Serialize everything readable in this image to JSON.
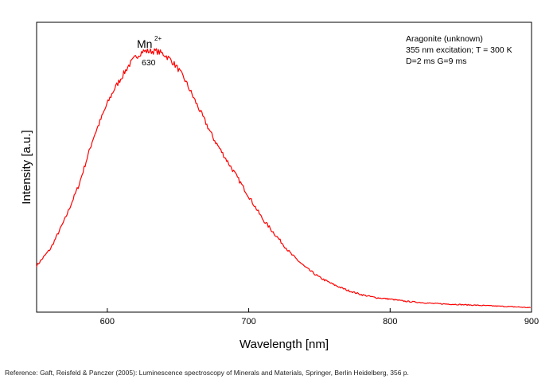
{
  "colors": {
    "series": "#ff0000",
    "axis": "#000000",
    "background": "#ffffff"
  },
  "chart_data": {
    "type": "line",
    "title": "",
    "xlabel": "Wavelength [nm]",
    "ylabel": "Intensity [a.u.]",
    "xlim": [
      550,
      900
    ],
    "ylim": [
      0,
      1
    ],
    "xticks": [
      600,
      700,
      800,
      900
    ],
    "y_tick_labels_shown": false,
    "grid": false,
    "legend": "none",
    "annotations": {
      "sample": "Aragonite (unknown)",
      "excitation": "355 nm excitation; T = 300 K",
      "timing": "D=2 ms G=9 ms",
      "peak_ion": "Mn",
      "peak_charge": "2+",
      "peak_wavelength": "630"
    },
    "series": [
      {
        "x": [
          550,
          560,
          570,
          580,
          590,
          600,
          605,
          610,
          615,
          620,
          625,
          630,
          635,
          640,
          645,
          650,
          655,
          660,
          665,
          670,
          675,
          680,
          685,
          690,
          695,
          700,
          705,
          710,
          720,
          730,
          740,
          750,
          760,
          770,
          780,
          790,
          800,
          810,
          820,
          830,
          840,
          850,
          860,
          870,
          880,
          890,
          900
        ],
        "y": [
          0.16,
          0.22,
          0.32,
          0.44,
          0.6,
          0.72,
          0.77,
          0.81,
          0.85,
          0.88,
          0.9,
          0.9,
          0.9,
          0.89,
          0.87,
          0.84,
          0.8,
          0.75,
          0.7,
          0.65,
          0.6,
          0.56,
          0.52,
          0.48,
          0.44,
          0.4,
          0.36,
          0.32,
          0.26,
          0.2,
          0.155,
          0.12,
          0.095,
          0.075,
          0.06,
          0.05,
          0.045,
          0.038,
          0.034,
          0.03,
          0.028,
          0.026,
          0.024,
          0.022,
          0.02,
          0.018,
          0.015
        ]
      }
    ]
  },
  "reference": "Reference: Gaft, Reisfeld & Panczer (2005): Luminescence spectroscopy of Minerals and Materials, Springer, Berlin Heidelberg, 356 p."
}
